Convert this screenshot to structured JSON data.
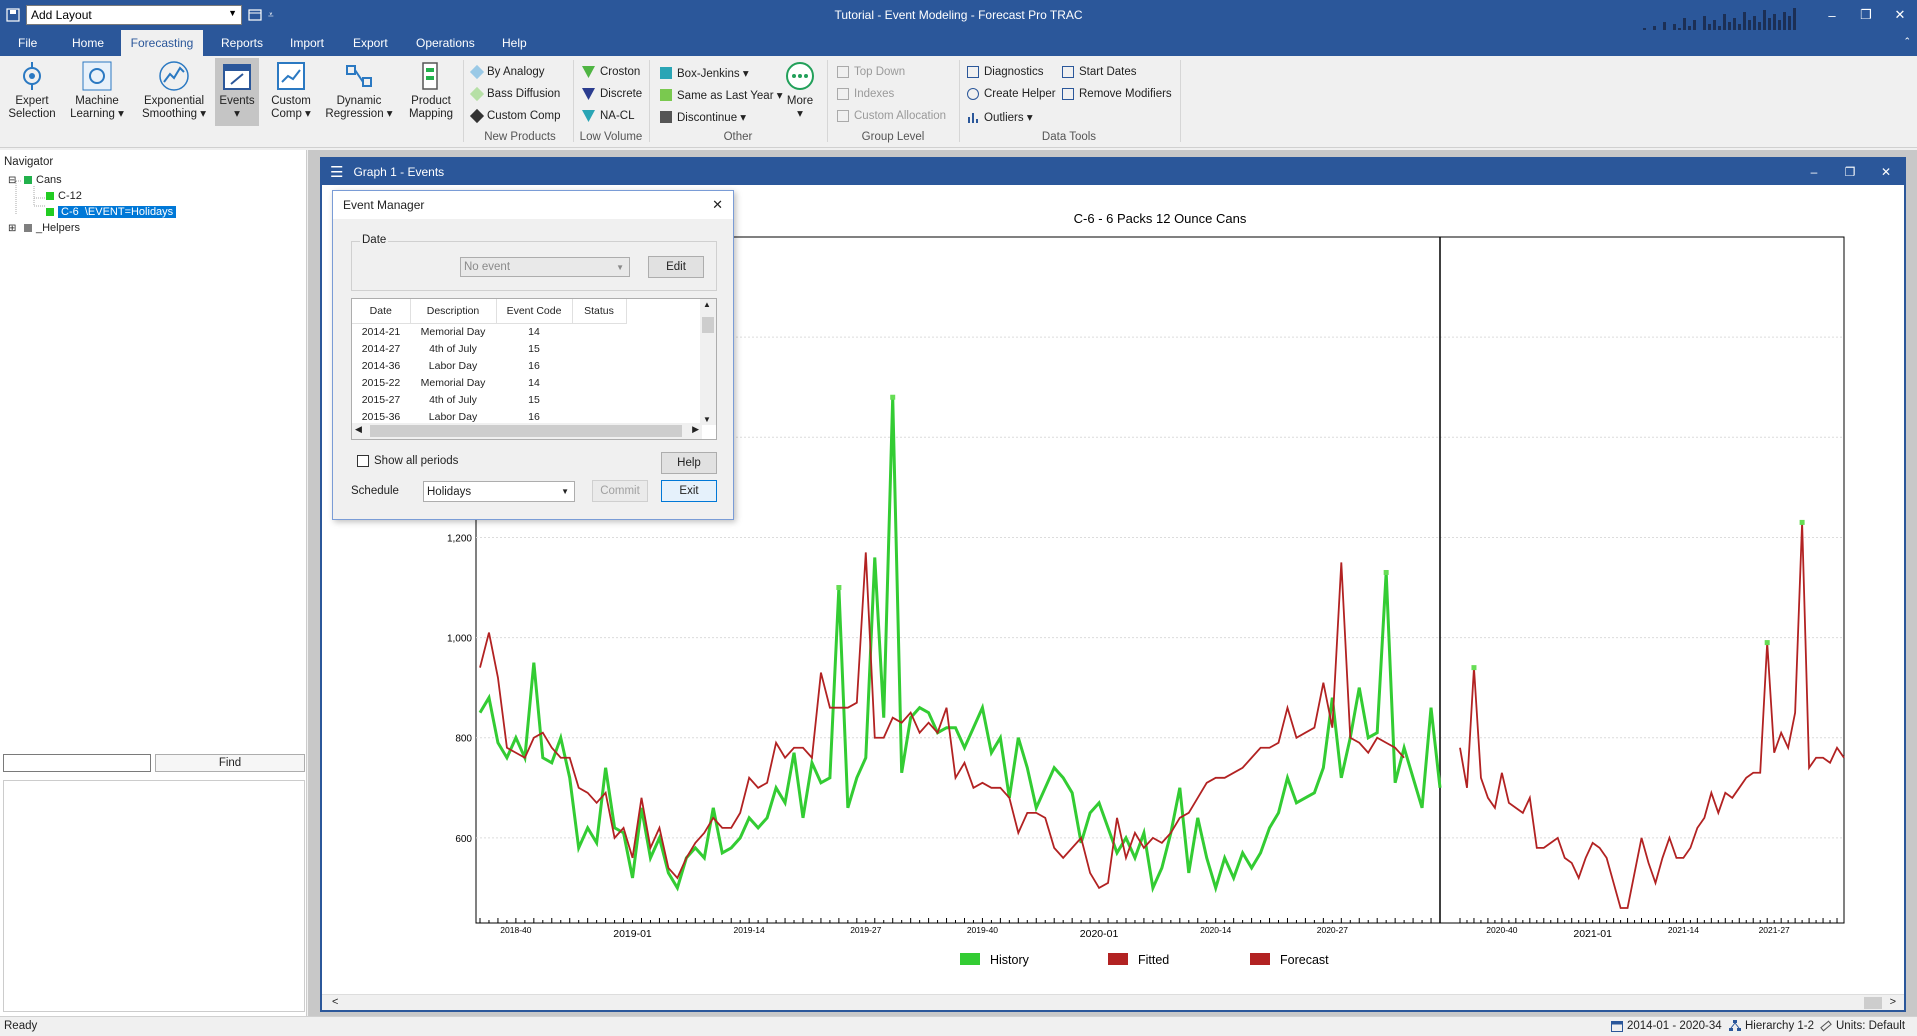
{
  "window": {
    "title": "Tutorial - Event Modeling - Forecast Pro TRAC",
    "layout_select": "Add Layout",
    "controls": {
      "minimize": "–",
      "restore": "❐",
      "close": "✕"
    }
  },
  "menu_tabs": [
    "File",
    "Home",
    "Forecasting",
    "Reports",
    "Import",
    "Export",
    "Operations",
    "Help"
  ],
  "ribbon": {
    "large_buttons": [
      {
        "label1": "Expert",
        "label2": "Selection"
      },
      {
        "label1": "Machine",
        "label2": "Learning ▾"
      },
      {
        "label1": "Exponential",
        "label2": "Smoothing ▾"
      },
      {
        "label1": "Events",
        "label2": "▾"
      },
      {
        "label1": "Custom",
        "label2": "Comp ▾"
      },
      {
        "label1": "Dynamic",
        "label2": "Regression ▾"
      },
      {
        "label1": "Product",
        "label2": "Mapping"
      }
    ],
    "new_products": [
      "By Analogy",
      "Bass Diffusion",
      "Custom Comp"
    ],
    "low_volume": [
      "Croston",
      "Discrete",
      "NA-CL"
    ],
    "other": [
      "Box-Jenkins ▾",
      "Same as Last Year ▾",
      "Discontinue ▾"
    ],
    "more": "More",
    "group_level": [
      "Top Down",
      "Indexes",
      "Custom Allocation"
    ],
    "data_tools_col1": [
      "Diagnostics",
      "Create Helper",
      "Outliers ▾"
    ],
    "data_tools_col2": [
      "Start Dates",
      "Remove Modifiers"
    ],
    "group_labels": [
      "New Products",
      "Low Volume",
      "Other",
      "Group Level",
      "Data Tools"
    ]
  },
  "navigator": {
    "title": "Navigator",
    "tree": [
      {
        "expander": "⊟",
        "label": "Cans",
        "color": "#22b14c"
      },
      {
        "expander": "",
        "label": "C-12",
        "color": "#22cc22"
      },
      {
        "expander": "",
        "label": "C-6  \\EVENT=Holidays",
        "color": "#22cc22"
      },
      {
        "expander": "⊞",
        "label": "_Helpers",
        "color": "#7f7f7f"
      }
    ],
    "find_button": "Find",
    "find_value": ""
  },
  "graph_window": {
    "title": "Graph 1 - Events",
    "controls": {
      "minimize": "–",
      "restore": "❐",
      "close": "✕"
    },
    "scroll_left": "<",
    "scroll_right": ">"
  },
  "event_manager": {
    "title": "Event Manager",
    "close": "✕",
    "date_legend": "Date",
    "event_select": "No event",
    "edit_button": "Edit",
    "columns": [
      "Date",
      "Description",
      "Event Code",
      "Status"
    ],
    "rows": [
      [
        "2014-21",
        "Memorial Day",
        "14",
        ""
      ],
      [
        "2014-27",
        "4th of July",
        "15",
        ""
      ],
      [
        "2014-36",
        "Labor Day",
        "16",
        ""
      ],
      [
        "2015-22",
        "Memorial Day",
        "14",
        ""
      ],
      [
        "2015-27",
        "4th of July",
        "15",
        ""
      ],
      [
        "2015-36",
        "Labor Day",
        "16",
        ""
      ]
    ],
    "show_all_periods": "Show all periods",
    "help_button": "Help",
    "schedule_label": "Schedule",
    "schedule_value": "Holidays",
    "commit_button": "Commit",
    "exit_button": "Exit"
  },
  "chart_data": {
    "type": "line",
    "title": "C-6 - 6 Packs 12 Ounce Cans",
    "y_ticks": [
      "600",
      "800",
      "1,000",
      "1,200"
    ],
    "ylim": [
      430,
      1800
    ],
    "x_tick_labels": [
      "2018-40",
      "2019-01",
      "2019-14",
      "2019-27",
      "2019-40",
      "2020-01",
      "2020-14",
      "2020-27",
      "2020-40",
      "2021-01",
      "2021-14",
      "2021-27"
    ],
    "major_x_labels": [
      "2019-01",
      "2020-01",
      "2021-01"
    ],
    "forecast_start": "2020-34",
    "legend": [
      "History",
      "Fitted",
      "Forecast"
    ],
    "colors": {
      "History": "#33cc33",
      "Fitted": "#b22222",
      "Forecast": "#b22222",
      "Event": "#66dd55"
    },
    "history": [
      850,
      880,
      790,
      760,
      800,
      760,
      950,
      760,
      750,
      800,
      720,
      580,
      620,
      590,
      740,
      620,
      610,
      520,
      660,
      560,
      600,
      530,
      500,
      560,
      580,
      560,
      660,
      570,
      580,
      600,
      640,
      620,
      640,
      700,
      670,
      770,
      640,
      750,
      710,
      720,
      1100,
      660,
      720,
      760,
      1160,
      840,
      1480,
      730,
      840,
      860,
      850,
      810,
      820,
      820,
      780,
      820,
      860,
      770,
      800,
      680,
      800,
      740,
      660,
      700,
      740,
      720,
      690,
      590,
      650,
      670,
      620,
      570,
      600,
      560,
      610,
      500,
      540,
      610,
      700,
      530,
      640,
      560,
      500,
      560,
      520,
      570,
      540,
      570,
      620,
      650,
      720,
      670,
      680,
      690,
      740,
      880,
      720,
      800,
      900,
      800,
      810,
      1130,
      710,
      780,
      720,
      660,
      860,
      700
    ],
    "fitted": [
      940,
      1010,
      920,
      780,
      770,
      760,
      800,
      810,
      780,
      760,
      760,
      700,
      690,
      670,
      690,
      600,
      620,
      560,
      680,
      580,
      620,
      540,
      520,
      560,
      590,
      610,
      640,
      620,
      620,
      650,
      720,
      700,
      710,
      790,
      760,
      780,
      780,
      760,
      930,
      860,
      860,
      860,
      870,
      1170,
      800,
      800,
      840,
      830,
      850,
      810,
      830,
      810,
      860,
      720,
      750,
      700,
      710,
      700,
      700,
      680,
      610,
      650,
      650,
      640,
      580,
      560,
      580,
      600,
      530,
      500,
      510,
      640,
      560,
      610,
      580,
      600,
      590,
      610,
      640,
      650,
      680,
      710,
      720,
      720,
      730,
      740,
      760,
      780,
      780,
      790,
      860,
      800,
      810,
      820,
      910,
      820,
      1150,
      800,
      790,
      770,
      800,
      790,
      780,
      760
    ],
    "forecast": [
      780,
      700,
      940,
      720,
      680,
      660,
      730,
      670,
      660,
      650,
      680,
      580,
      580,
      590,
      600,
      560,
      550,
      520,
      560,
      590,
      580,
      560,
      510,
      460,
      460,
      530,
      600,
      550,
      510,
      560,
      600,
      560,
      560,
      580,
      620,
      640,
      690,
      650,
      690,
      680,
      700,
      720,
      730,
      730,
      990,
      770,
      810,
      780,
      850,
      1230,
      740,
      760,
      760,
      750,
      780,
      760
    ]
  },
  "status": {
    "left": "Ready",
    "period": "2014-01 - 2020-34",
    "hierarchy": "Hierarchy 1-2",
    "units": "Units: Default"
  }
}
